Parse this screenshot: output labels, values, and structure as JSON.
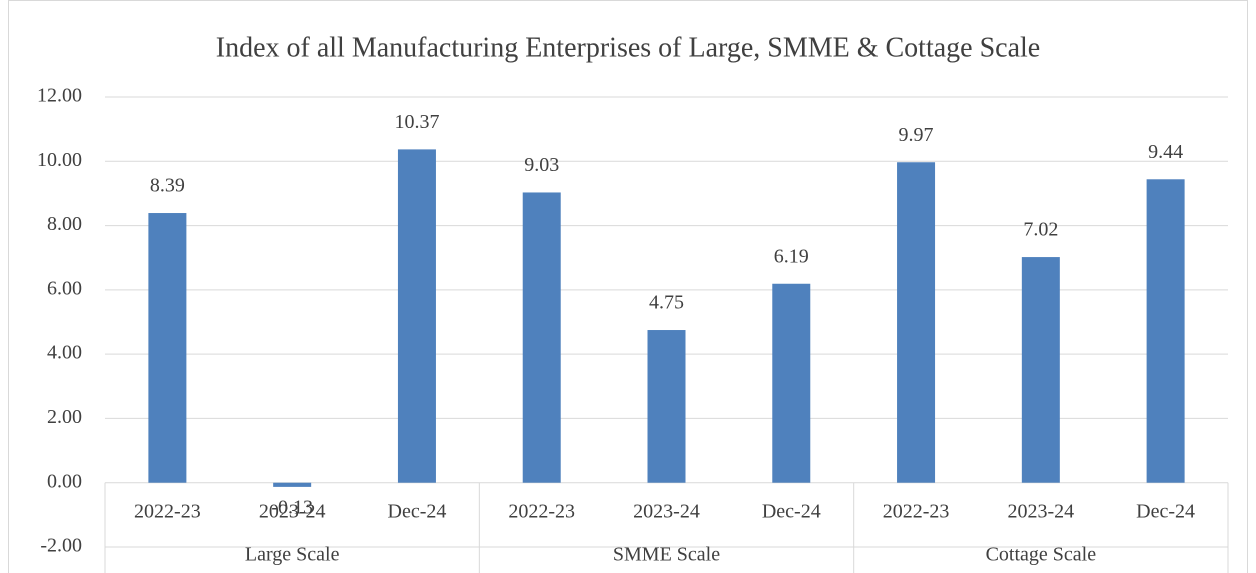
{
  "chart_data": {
    "type": "bar",
    "title": "Index of all Manufacturing Enterprises of Large, SMME & Cottage Scale",
    "categories": [
      "2022-23",
      "2023-24",
      "Dec-24",
      "2022-23",
      "2023-24",
      "Dec-24",
      "2022-23",
      "2023-24",
      "Dec-24"
    ],
    "groups": [
      "Large Scale",
      "SMME Scale",
      "Cottage Scale"
    ],
    "values": [
      8.39,
      -0.13,
      10.37,
      9.03,
      4.75,
      6.19,
      9.97,
      7.02,
      9.44
    ],
    "color": "#4f81bd",
    "ylim": [
      -2,
      12
    ],
    "yticks": [
      {
        "value": -2,
        "label": "-2.00"
      },
      {
        "value": 0,
        "label": "0.00"
      },
      {
        "value": 2,
        "label": "2.00"
      },
      {
        "value": 4,
        "label": "4.00"
      },
      {
        "value": 6,
        "label": "6.00"
      },
      {
        "value": 8,
        "label": "8.00"
      },
      {
        "value": 10,
        "label": "10.00"
      },
      {
        "value": 12,
        "label": "12.00"
      }
    ],
    "grid": true
  }
}
